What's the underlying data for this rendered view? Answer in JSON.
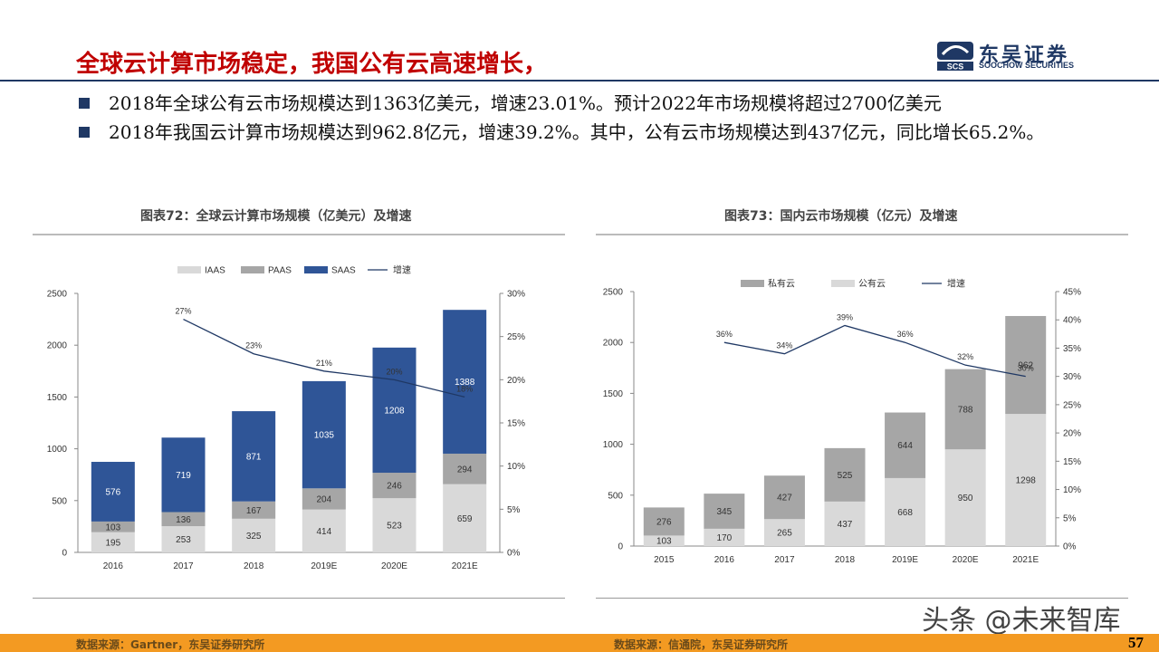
{
  "header": {
    "title": "全球云计算市场稳定，我国公有云高速增长，",
    "logo_cn": "东吴证券",
    "logo_en": "SOOCHOW SECURITIES",
    "logo_mark": "SCS"
  },
  "bullets": [
    "2018年全球公有云市场规模达到1363亿美元，增速23.01%。预计2022年市场规模将超过2700亿美元",
    "2018年我国云计算市场规模达到962.8亿元，增速39.2%。其中，公有云市场规模达到437亿元，同比增长65.2%。"
  ],
  "colors": {
    "title": "#c00000",
    "navy": "#1f3864",
    "footer": "#f39a22"
  },
  "chart_data": [
    {
      "type": "bar",
      "title": "图表72：全球云计算市场规模（亿美元）及增速",
      "categories": [
        "2016",
        "2017",
        "2018",
        "2019E",
        "2020E",
        "2021E"
      ],
      "series": [
        {
          "name": "IAAS",
          "color": "#d9d9d9",
          "values": [
            195,
            253,
            325,
            414,
            523,
            659
          ]
        },
        {
          "name": "PAAS",
          "color": "#a6a6a6",
          "values": [
            103,
            136,
            167,
            204,
            246,
            294
          ]
        },
        {
          "name": "SAAS",
          "color": "#2f5597",
          "values": [
            576,
            719,
            871,
            1035,
            1208,
            1388
          ]
        }
      ],
      "line": {
        "name": "增速",
        "color": "#1f3864",
        "values": [
          null,
          27,
          23,
          21,
          20,
          18
        ],
        "labels": [
          "",
          "27%",
          "23%",
          "21%",
          "20%",
          "18%"
        ]
      },
      "ylim": [
        0,
        2500
      ],
      "yticks": [
        "0",
        "500",
        "1000",
        "1500",
        "2000",
        "2500"
      ],
      "y2lim": [
        0,
        30
      ],
      "y2ticks": [
        "0%",
        "5%",
        "10%",
        "15%",
        "20%",
        "25%",
        "30%"
      ],
      "legend": "top"
    },
    {
      "type": "bar",
      "title": "图表73：国内云市场规模（亿元）及增速",
      "categories": [
        "2015",
        "2016",
        "2017",
        "2018",
        "2019E",
        "2020E",
        "2021E"
      ],
      "series": [
        {
          "name": "公有云",
          "color": "#d9d9d9",
          "values": [
            103,
            170,
            265,
            437,
            668,
            950,
            1298
          ]
        },
        {
          "name": "私有云",
          "color": "#a6a6a6",
          "values": [
            276,
            345,
            427,
            525,
            644,
            788,
            962
          ]
        }
      ],
      "legend_order": [
        "私有云",
        "公有云",
        "增速"
      ],
      "line": {
        "name": "增速",
        "color": "#1f3864",
        "values": [
          null,
          36,
          34,
          39,
          36,
          32,
          30
        ],
        "labels": [
          "",
          "36%",
          "34%",
          "39%",
          "36%",
          "32%",
          "30%"
        ]
      },
      "ylim": [
        0,
        2500
      ],
      "yticks": [
        "0",
        "500",
        "1000",
        "1500",
        "2000",
        "2500"
      ],
      "y2lim": [
        0,
        45
      ],
      "y2ticks": [
        "0%",
        "5%",
        "10%",
        "15%",
        "20%",
        "25%",
        "30%",
        "35%",
        "40%",
        "45%"
      ],
      "legend": "top"
    }
  ],
  "footer": {
    "source_left": "数据来源：Gartner，东吴证券研究所",
    "source_right": "数据来源：信通院，东吴证券研究所",
    "page": "57"
  },
  "watermark": "头条 @未来智库"
}
